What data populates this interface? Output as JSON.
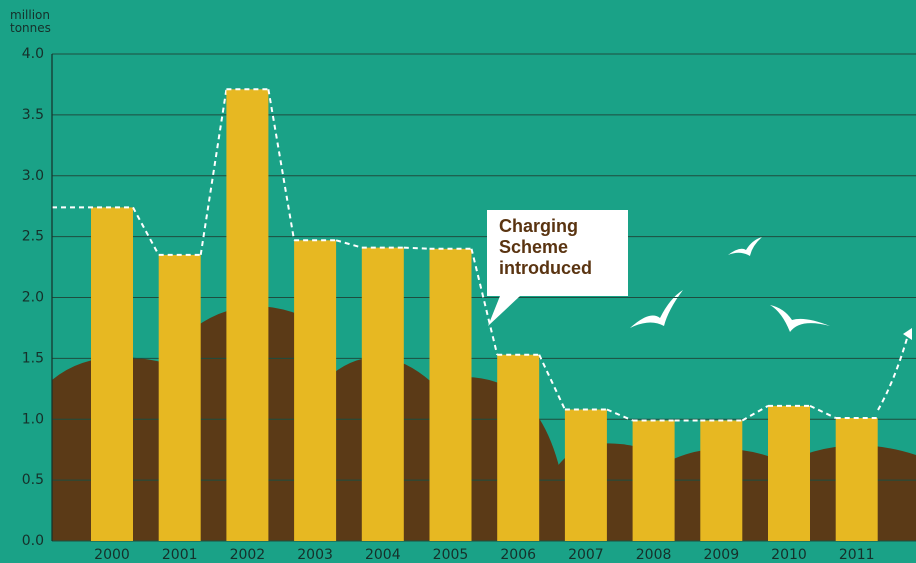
{
  "chart_data": {
    "type": "bar",
    "ylabel": "million tonnes",
    "categories": [
      "2000",
      "2001",
      "2002",
      "2003",
      "2004",
      "2005",
      "2006",
      "2007",
      "2008",
      "2009",
      "2010",
      "2011"
    ],
    "values": [
      2.74,
      2.35,
      3.71,
      2.47,
      2.41,
      2.4,
      1.53,
      1.08,
      0.99,
      0.99,
      1.11,
      1.01
    ],
    "color": "#e7b822",
    "ylim": [
      0,
      4
    ],
    "yticks": [
      {
        "value": 0,
        "label": "0.0"
      },
      0.5,
      {
        "value": 1,
        "label": "1.0"
      },
      1.5,
      {
        "value": 2,
        "label": "2.0"
      },
      2.5,
      {
        "value": 3,
        "label": "3.0"
      },
      3.5,
      {
        "value": 4,
        "label": "4.0"
      }
    ],
    "grid": true,
    "annotation": "Charging Scheme introduced"
  }
}
